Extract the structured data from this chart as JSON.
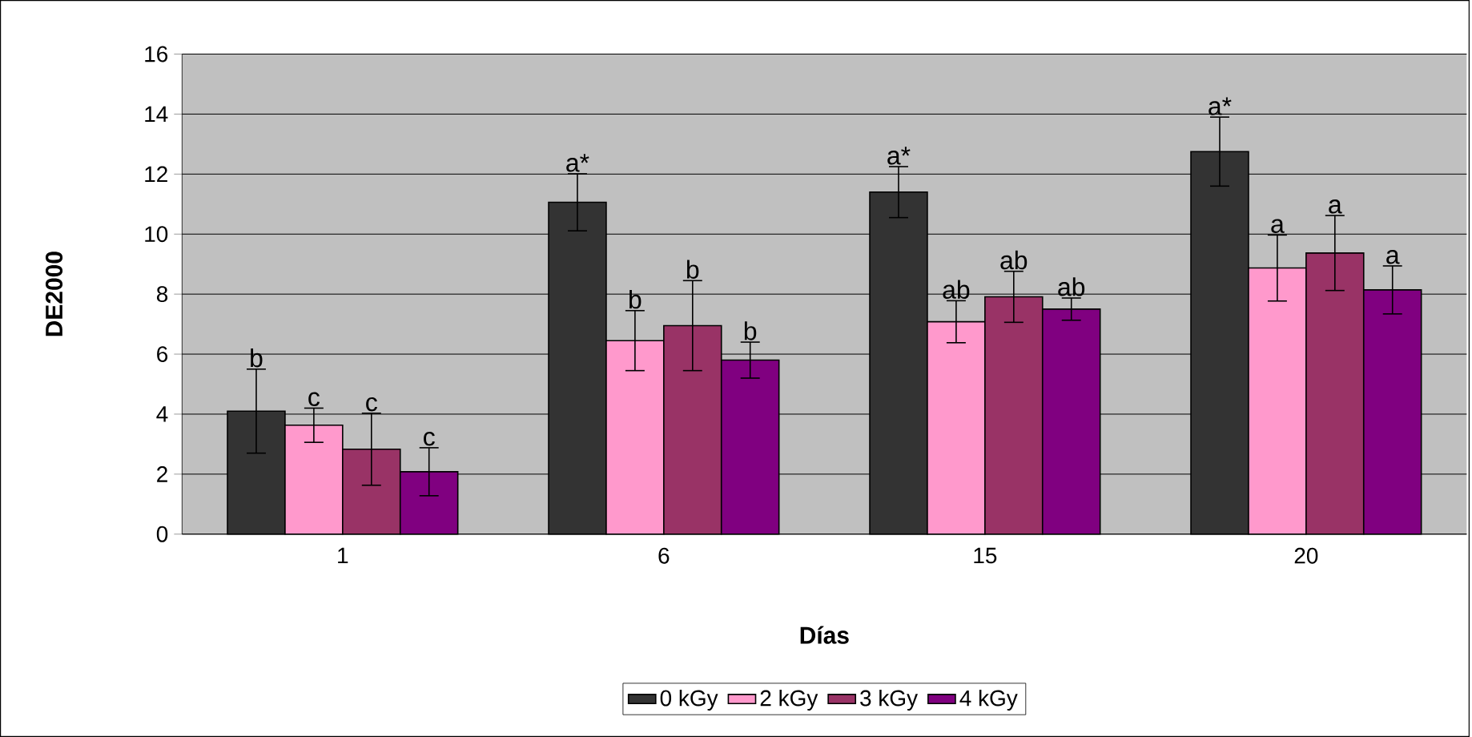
{
  "chart_data": {
    "type": "bar",
    "xlabel": "Días",
    "ylabel": "DE2000",
    "categories": [
      "1",
      "6",
      "15",
      "20"
    ],
    "series": [
      {
        "name": "0 kGy",
        "color": "#333333",
        "values": [
          4.1,
          11.06,
          11.4,
          12.75
        ],
        "errors": [
          1.4,
          0.95,
          0.85,
          1.15
        ]
      },
      {
        "name": "2 kGy",
        "color": "#ff99cc",
        "values": [
          3.63,
          6.45,
          7.08,
          8.87
        ],
        "errors": [
          0.57,
          1.0,
          0.7,
          1.1
        ]
      },
      {
        "name": "3 kGy",
        "color": "#993366",
        "values": [
          2.83,
          6.95,
          7.91,
          9.37
        ],
        "errors": [
          1.2,
          1.5,
          0.85,
          1.25
        ]
      },
      {
        "name": "4 kGy",
        "color": "#800080",
        "values": [
          2.08,
          5.8,
          7.5,
          8.14
        ],
        "errors": [
          0.8,
          0.6,
          0.37,
          0.8
        ]
      }
    ],
    "ylim": [
      0,
      16
    ],
    "yticks": [
      0,
      2,
      4,
      6,
      8,
      10,
      12,
      14,
      16
    ],
    "grid": "y",
    "legend": "bottom",
    "annotations": [
      "b",
      "c",
      "c",
      "c",
      "a*",
      "b",
      "b",
      "b",
      "a*",
      "ab",
      "ab",
      "ab",
      "a*",
      "a",
      "a",
      "a"
    ]
  }
}
